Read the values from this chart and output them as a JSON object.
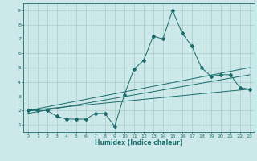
{
  "xlabel": "Humidex (Indice chaleur)",
  "bg_color": "#cce8e8",
  "grid_color": "#aacccc",
  "line_color": "#1a6b6b",
  "xlim": [
    -0.5,
    23.5
  ],
  "ylim": [
    0.5,
    9.5
  ],
  "xticks": [
    0,
    1,
    2,
    3,
    4,
    5,
    6,
    7,
    8,
    9,
    10,
    11,
    12,
    13,
    14,
    15,
    16,
    17,
    18,
    19,
    20,
    21,
    22,
    23
  ],
  "yticks": [
    1,
    2,
    3,
    4,
    5,
    6,
    7,
    8,
    9
  ],
  "series": [
    {
      "x": [
        0,
        1,
        2,
        3,
        4,
        5,
        6,
        7,
        8,
        9,
        10,
        11,
        12,
        13,
        14,
        15,
        16,
        17,
        18,
        19,
        20,
        21,
        22,
        23
      ],
      "y": [
        2.0,
        2.0,
        2.0,
        1.6,
        1.4,
        1.4,
        1.4,
        1.8,
        1.8,
        0.9,
        3.1,
        4.9,
        5.5,
        7.2,
        7.0,
        9.0,
        7.4,
        6.5,
        5.0,
        4.4,
        4.5,
        4.5,
        3.6,
        3.5
      ],
      "marker": "D",
      "markersize": 2.0
    },
    {
      "x": [
        0,
        23
      ],
      "y": [
        2.0,
        3.5
      ],
      "marker": null
    },
    {
      "x": [
        0,
        23
      ],
      "y": [
        1.8,
        4.5
      ],
      "marker": null
    },
    {
      "x": [
        0,
        23
      ],
      "y": [
        2.0,
        5.0
      ],
      "marker": null
    }
  ]
}
